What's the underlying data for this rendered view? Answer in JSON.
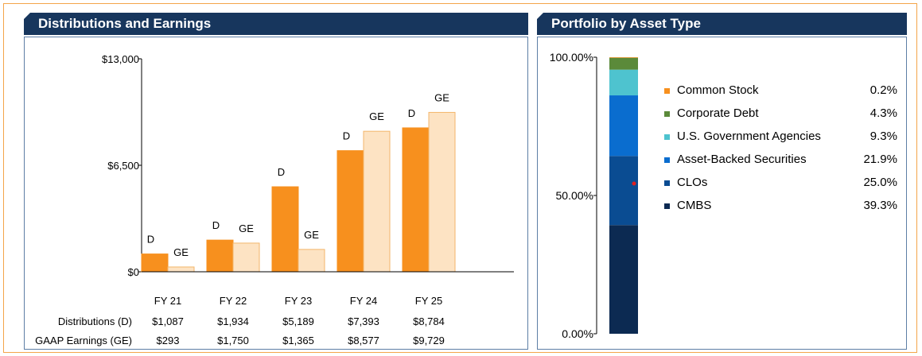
{
  "left_header": "Distributions and Earnings",
  "right_header": "Portfolio by Asset Type",
  "colors": {
    "header_bg": "#17365d",
    "distributions": "#f7901e",
    "gaap": "#fde3c3",
    "frame": "#f3a54a",
    "panel_border": "#5d7ea5"
  },
  "chart_data": [
    {
      "type": "bar",
      "title": "Distributions and Earnings",
      "categories": [
        "FY 21",
        "FY 22",
        "FY 23",
        "FY 24",
        "FY 25"
      ],
      "yticks": [
        "$0",
        "$6,500",
        "$13,000"
      ],
      "ylim": [
        0,
        13000
      ],
      "series": [
        {
          "name": "Distributions (D)",
          "short": "D",
          "values": [
            1087,
            1934,
            5189,
            7393,
            8784
          ],
          "display": [
            "$1,087",
            "$1,934",
            "$5,189",
            "$7,393",
            "$8,784"
          ]
        },
        {
          "name": "GAAP Earnings (GE)",
          "short": "GE",
          "values": [
            293,
            1750,
            1365,
            8577,
            9729
          ],
          "display": [
            "$293",
            "$1,750",
            "$1,365",
            "$8,577",
            "$9,729"
          ]
        }
      ]
    },
    {
      "type": "bar",
      "subtype": "stacked-100",
      "title": "Portfolio by Asset Type",
      "yticks": [
        "0.00%",
        "50.00%",
        "100.00%"
      ],
      "ylim": [
        0,
        100
      ],
      "segments": [
        {
          "label": "CMBS",
          "value": 39.3,
          "display": "39.3%",
          "color": "#0c2a52"
        },
        {
          "label": "CLOs",
          "value": 25.0,
          "display": "25.0%",
          "color": "#0a4c92"
        },
        {
          "label": "Asset-Backed Securities",
          "value": 21.9,
          "display": "21.9%",
          "color": "#0a6dcf"
        },
        {
          "label": "U.S. Government Agencies",
          "value": 9.3,
          "display": "9.3%",
          "color": "#4ec3cf"
        },
        {
          "label": "Corporate Debt",
          "value": 4.3,
          "display": "4.3%",
          "color": "#5b8a3a"
        },
        {
          "label": "Common Stock",
          "value": 0.2,
          "display": "0.2%",
          "color": "#f7901e"
        }
      ]
    }
  ]
}
